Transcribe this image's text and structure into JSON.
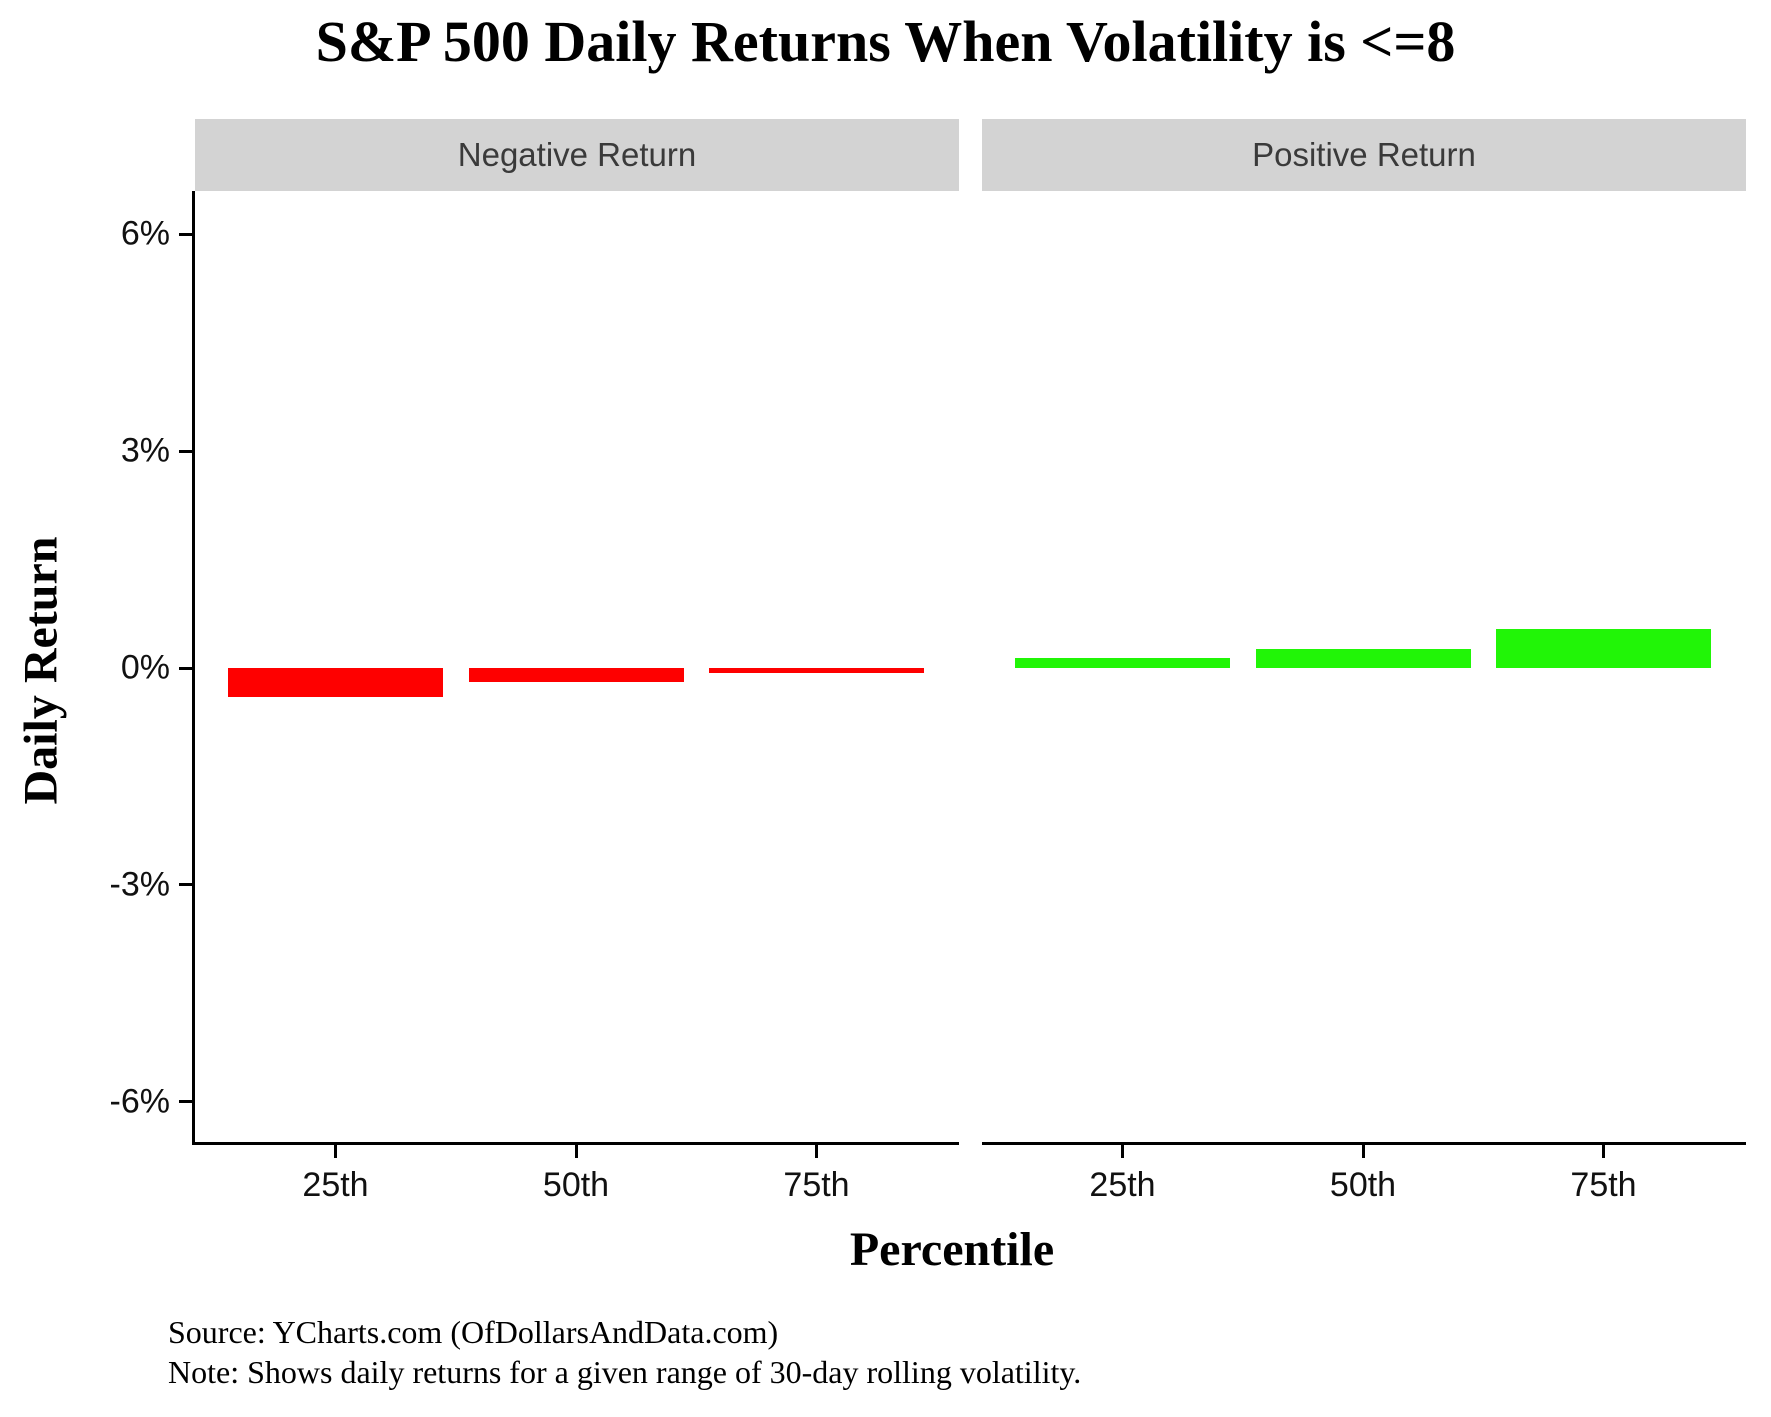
{
  "title": "S&P 500 Daily Returns When Volatility is <=8",
  "colors": {
    "negative_bar": "#fe0000",
    "positive_bar": "#21f507",
    "strip_bg": "#d3d3d3",
    "axis": "#000000"
  },
  "chart_data": {
    "type": "bar",
    "title": "S&P 500 Daily Returns When Volatility is <=8",
    "xlabel": "Percentile",
    "ylabel": "Daily Return",
    "categories": [
      "25th",
      "50th",
      "75th"
    ],
    "facets": [
      {
        "label": "Negative Return",
        "color": "#fe0000",
        "values": [
          -0.4,
          -0.19,
          -0.07
        ]
      },
      {
        "label": "Positive Return",
        "color": "#21f507",
        "values": [
          0.14,
          0.26,
          0.54
        ]
      }
    ],
    "y_ticks": [
      {
        "label": "6%",
        "value": 6
      },
      {
        "label": "3%",
        "value": 3
      },
      {
        "label": "0%",
        "value": 0
      },
      {
        "label": "-3%",
        "value": -3
      },
      {
        "label": "-6%",
        "value": -6
      }
    ],
    "ylim": [
      -6.6,
      6.6
    ],
    "grid": false,
    "legend": "none"
  },
  "caption": {
    "source": "Source: YCharts.com (OfDollarsAndData.com)",
    "note": "Note: Shows daily returns for a given range of 30-day rolling volatility."
  }
}
